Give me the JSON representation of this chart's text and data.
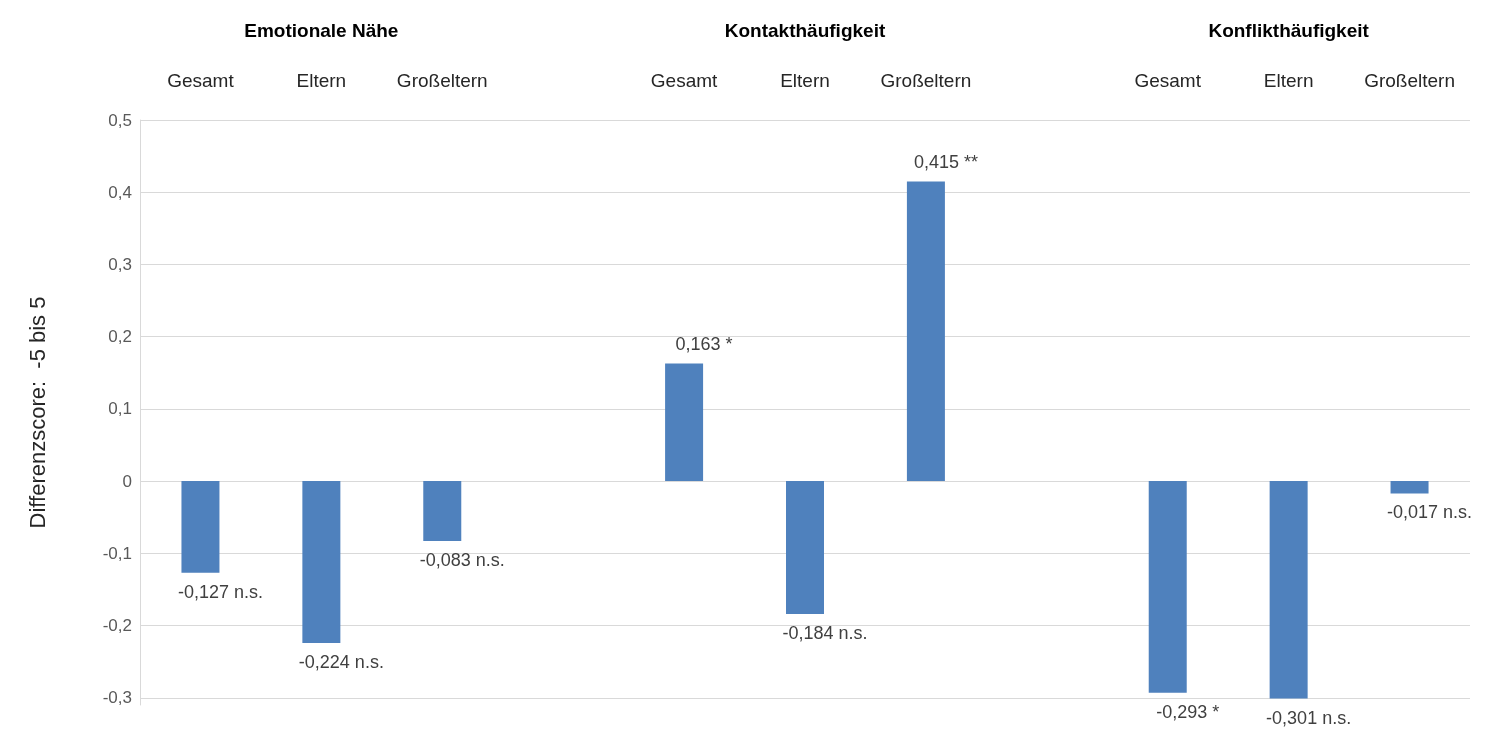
{
  "chart_data": {
    "type": "bar",
    "ylabel": "Differenzscore:  -5 bis 5",
    "annotations": [
      "Emotionale Nähe",
      "Kontakthäufigkeit",
      "Konflikthäufigkeit"
    ],
    "categories": [
      "Gesamt",
      "Eltern",
      "Großeltern",
      null,
      "Gesamt",
      "Eltern",
      "Großeltern",
      null,
      "Gesamt",
      "Eltern",
      "Großeltern"
    ],
    "values": [
      -0.127,
      -0.224,
      -0.083,
      null,
      0.163,
      -0.184,
      0.415,
      null,
      -0.293,
      -0.301,
      -0.017
    ],
    "value_labels": [
      "-0,127 n.s.",
      "-0,224 n.s.",
      "-0,083 n.s.",
      null,
      "0,163 *",
      "-0,184 n.s.",
      "0,415 **",
      null,
      "-0,293 *",
      "-0,301 n.s.",
      "-0,017 n.s."
    ],
    "color": "#4f81bd",
    "ylim": [
      -0.31,
      0.5
    ],
    "yticks": [
      {
        "value": -0.3,
        "label": "-0,3"
      },
      {
        "value": -0.2,
        "label": "-0,2"
      },
      {
        "value": -0.1,
        "label": "-0,1"
      },
      0,
      {
        "value": 0.1,
        "label": "0,1"
      },
      {
        "value": 0.2,
        "label": "0,2"
      },
      {
        "value": 0.3,
        "label": "0,3"
      },
      {
        "value": 0.4,
        "label": "0,4"
      },
      {
        "value": 0.5,
        "label": "0,5"
      }
    ],
    "grid": true
  }
}
